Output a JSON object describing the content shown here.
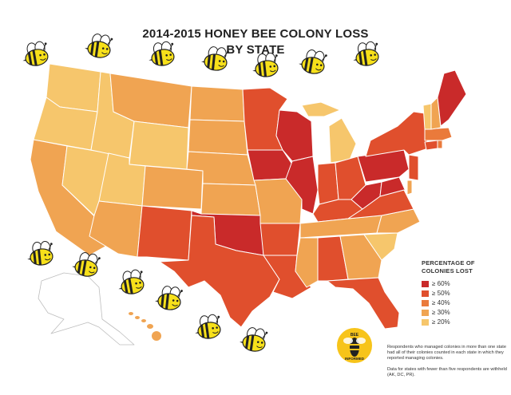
{
  "title_line1": "2014-2015 HONEY BEE COLONY LOSS",
  "title_line2": "BY STATE",
  "legend": {
    "title_line1": "PERCENTAGE OF",
    "title_line2": "COLONIES LOST",
    "items": [
      {
        "label": "≥ 60%",
        "color": "#c92a2a"
      },
      {
        "label": "≥ 50%",
        "color": "#e04f2d"
      },
      {
        "label": "≥ 40%",
        "color": "#ea7a3b"
      },
      {
        "label": "≥ 30%",
        "color": "#f0a452"
      },
      {
        "label": "≥ 20%",
        "color": "#f6c66c"
      }
    ]
  },
  "notes": {
    "note1": "Respondents who managed colonies in more than one state had all of their colonies counted in each state in which they reported managing colonies.",
    "note2": "Data for states with fewer than five respondents are withheld (AK, DC, PR)."
  },
  "logo": {
    "text_top": "BEE",
    "text_bottom": "INFORMED",
    "icon": "bee-informed-logo"
  },
  "colors": {
    "no_data": "#ffffff",
    "outline": "#ffffff",
    "bee_body": "#f7e01a",
    "bee_stripe": "#222222"
  }
}
